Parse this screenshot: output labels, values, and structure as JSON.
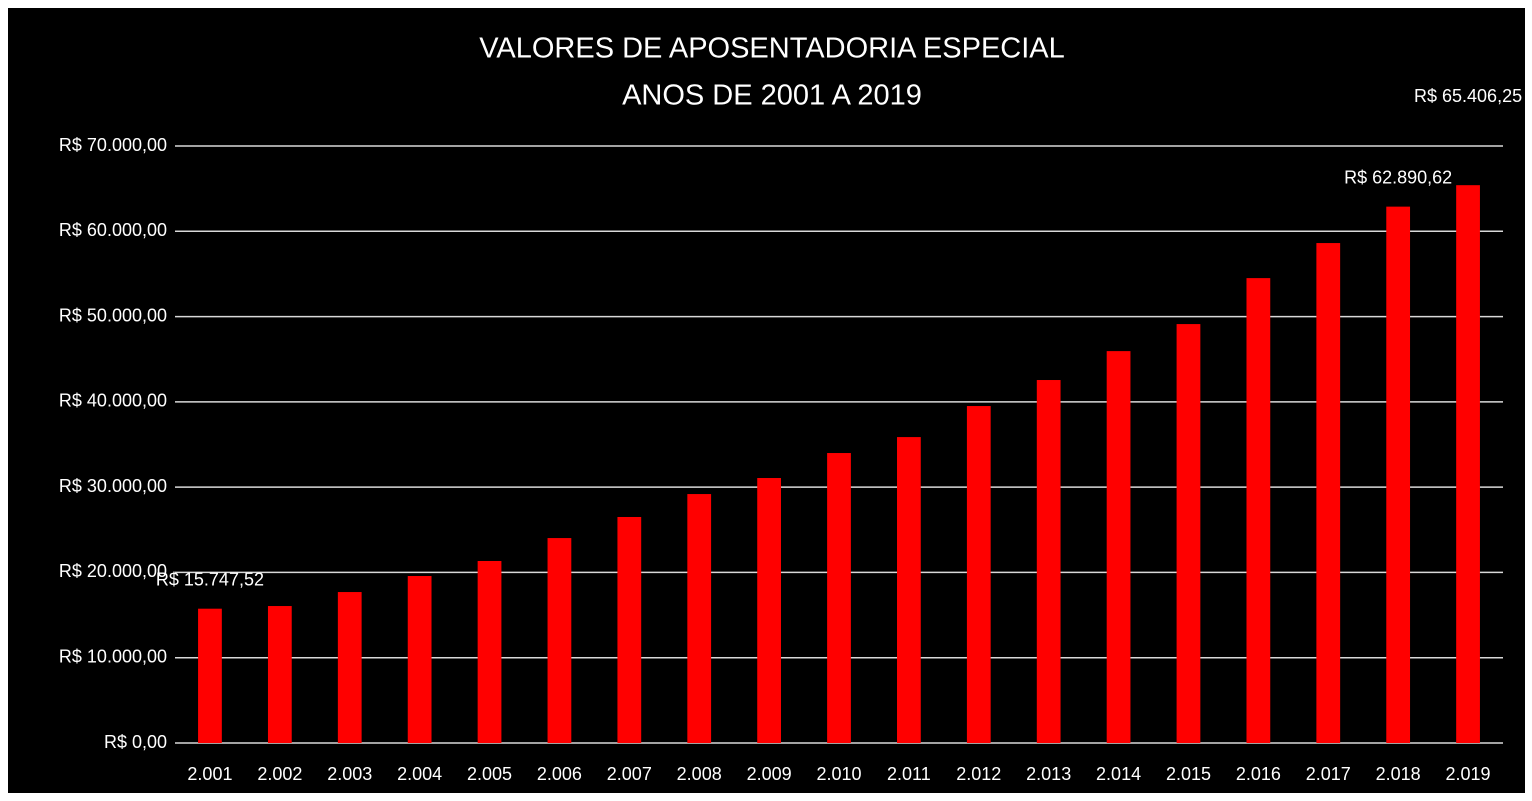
{
  "chart_data": {
    "type": "bar",
    "title": "VALORES DE APOSENTADORIA ESPECIAL",
    "subtitle": "ANOS DE 2001 A 2019",
    "categories": [
      "2.001",
      "2.002",
      "2.003",
      "2.004",
      "2.005",
      "2.006",
      "2.007",
      "2.008",
      "2.009",
      "2.010",
      "2.011",
      "2.012",
      "2.013",
      "2.014",
      "2.015",
      "2.016",
      "2.017",
      "2.018",
      "2.019"
    ],
    "values": [
      15747.52,
      16060,
      17700,
      19580,
      21340,
      24030,
      26500,
      29190,
      31070,
      34000,
      35870,
      39510,
      42560,
      45950,
      49120,
      54510,
      58620,
      62890.62,
      65406.25
    ],
    "value_labels": [
      "R$ 15.747,52",
      null,
      null,
      null,
      null,
      null,
      null,
      null,
      null,
      null,
      null,
      null,
      null,
      null,
      null,
      null,
      null,
      "R$ 62.890,62",
      "R$ 65.406,25"
    ],
    "color": "#ff0000",
    "ylim": [
      0,
      70000
    ],
    "yticks": [
      {
        "value": 0,
        "label": "R$ 0,00"
      },
      {
        "value": 10000,
        "label": "R$ 10.000,00"
      },
      {
        "value": 20000,
        "label": "R$ 20.000,00"
      },
      {
        "value": 30000,
        "label": "R$ 30.000,00"
      },
      {
        "value": 40000,
        "label": "R$ 40.000,00"
      },
      {
        "value": 50000,
        "label": "R$ 50.000,00"
      },
      {
        "value": 60000,
        "label": "R$ 60.000,00"
      },
      {
        "value": 70000,
        "label": "R$ 70.000,00"
      }
    ],
    "grid": true
  }
}
